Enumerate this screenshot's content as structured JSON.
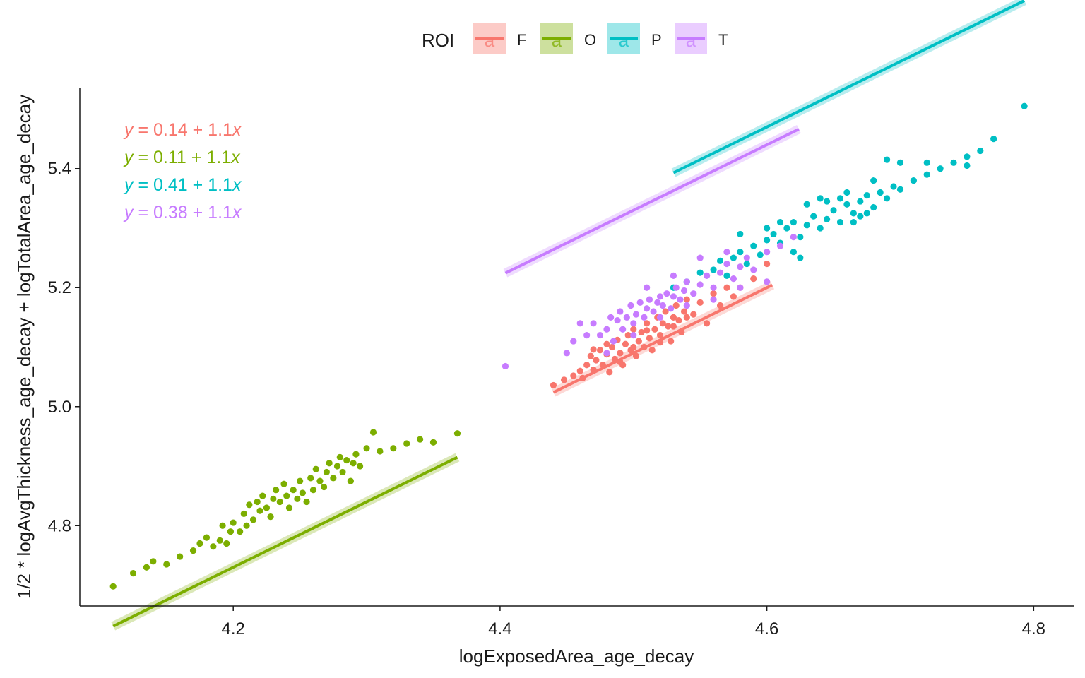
{
  "chart_data": {
    "type": "scatter",
    "xlabel": "logExposedArea_age_decay",
    "ylabel": "1/2 * logAvgThickness_age_decay + logTotalArea_age_decay",
    "xlim": [
      4.085,
      4.83
    ],
    "ylim": [
      4.665,
      5.535
    ],
    "xticks": [
      4.2,
      4.4,
      4.6,
      4.8
    ],
    "yticks": [
      4.8,
      5.0,
      5.2,
      5.4
    ],
    "x_tick_labels": [
      "4.2",
      "4.4",
      "4.6",
      "4.8"
    ],
    "y_tick_labels": [
      "4.8",
      "5.0",
      "5.2",
      "5.4"
    ],
    "grid": false,
    "legend": {
      "title": "ROI",
      "placement": "top",
      "glyph": "a"
    },
    "series": [
      {
        "name": "F",
        "color": "#F8766D",
        "equation": {
          "lhs": "y",
          "eq": " = ",
          "intercept": "0.14",
          "plus": " + ",
          "slope": "1.1",
          "var": "x"
        },
        "fit": {
          "intercept": 0.14,
          "slope": 1.1,
          "x_range": [
            4.44,
            4.604
          ]
        },
        "points": [
          [
            4.44,
            5.036
          ],
          [
            4.448,
            5.045
          ],
          [
            4.455,
            5.052
          ],
          [
            4.46,
            5.06
          ],
          [
            4.462,
            5.048
          ],
          [
            4.465,
            5.07
          ],
          [
            4.468,
            5.085
          ],
          [
            4.47,
            5.062
          ],
          [
            4.472,
            5.078
          ],
          [
            4.475,
            5.095
          ],
          [
            4.477,
            5.07
          ],
          [
            4.48,
            5.088
          ],
          [
            4.482,
            5.058
          ],
          [
            4.484,
            5.1
          ],
          [
            4.486,
            5.08
          ],
          [
            4.488,
            5.112
          ],
          [
            4.49,
            5.09
          ],
          [
            4.492,
            5.07
          ],
          [
            4.494,
            5.105
          ],
          [
            4.496,
            5.12
          ],
          [
            4.498,
            5.095
          ],
          [
            4.5,
            5.13
          ],
          [
            4.502,
            5.085
          ],
          [
            4.504,
            5.11
          ],
          [
            4.506,
            5.125
          ],
          [
            4.508,
            5.1
          ],
          [
            4.51,
            5.14
          ],
          [
            4.512,
            5.115
          ],
          [
            4.514,
            5.095
          ],
          [
            4.516,
            5.13
          ],
          [
            4.518,
            5.15
          ],
          [
            4.52,
            5.12
          ],
          [
            4.522,
            5.14
          ],
          [
            4.524,
            5.16
          ],
          [
            4.526,
            5.135
          ],
          [
            4.528,
            5.11
          ],
          [
            4.53,
            5.15
          ],
          [
            4.532,
            5.17
          ],
          [
            4.534,
            5.145
          ],
          [
            4.536,
            5.125
          ],
          [
            4.538,
            5.16
          ],
          [
            4.54,
            5.18
          ],
          [
            4.545,
            5.155
          ],
          [
            4.55,
            5.175
          ],
          [
            4.555,
            5.14
          ],
          [
            4.56,
            5.19
          ],
          [
            4.565,
            5.17
          ],
          [
            4.57,
            5.2
          ],
          [
            4.575,
            5.185
          ],
          [
            4.58,
            5.2
          ],
          [
            4.59,
            5.215
          ],
          [
            4.6,
            5.24
          ],
          [
            4.47,
            5.096
          ],
          [
            4.48,
            5.105
          ],
          [
            4.49,
            5.075
          ],
          [
            4.5,
            5.1
          ],
          [
            4.51,
            5.128
          ],
          [
            4.52,
            5.108
          ],
          [
            4.53,
            5.135
          ],
          [
            4.54,
            5.15
          ]
        ]
      },
      {
        "name": "O",
        "color": "#7CAE00",
        "equation": {
          "lhs": "y",
          "eq": " = ",
          "intercept": "0.11",
          "plus": " + ",
          "slope": "1.1",
          "var": "x"
        },
        "fit": {
          "intercept": 0.11,
          "slope": 1.1,
          "x_range": [
            4.11,
            4.368
          ]
        },
        "points": [
          [
            4.11,
            4.698
          ],
          [
            4.125,
            4.72
          ],
          [
            4.135,
            4.73
          ],
          [
            4.14,
            4.74
          ],
          [
            4.15,
            4.735
          ],
          [
            4.16,
            4.748
          ],
          [
            4.17,
            4.758
          ],
          [
            4.175,
            4.77
          ],
          [
            4.18,
            4.78
          ],
          [
            4.185,
            4.765
          ],
          [
            4.19,
            4.775
          ],
          [
            4.192,
            4.8
          ],
          [
            4.195,
            4.77
          ],
          [
            4.198,
            4.79
          ],
          [
            4.2,
            4.805
          ],
          [
            4.205,
            4.79
          ],
          [
            4.208,
            4.82
          ],
          [
            4.21,
            4.8
          ],
          [
            4.212,
            4.835
          ],
          [
            4.215,
            4.81
          ],
          [
            4.218,
            4.84
          ],
          [
            4.22,
            4.825
          ],
          [
            4.222,
            4.85
          ],
          [
            4.225,
            4.83
          ],
          [
            4.228,
            4.815
          ],
          [
            4.23,
            4.845
          ],
          [
            4.232,
            4.86
          ],
          [
            4.235,
            4.84
          ],
          [
            4.238,
            4.87
          ],
          [
            4.24,
            4.85
          ],
          [
            4.242,
            4.83
          ],
          [
            4.245,
            4.86
          ],
          [
            4.248,
            4.845
          ],
          [
            4.25,
            4.875
          ],
          [
            4.252,
            4.855
          ],
          [
            4.255,
            4.84
          ],
          [
            4.258,
            4.88
          ],
          [
            4.26,
            4.86
          ],
          [
            4.262,
            4.895
          ],
          [
            4.265,
            4.875
          ],
          [
            4.268,
            4.865
          ],
          [
            4.27,
            4.89
          ],
          [
            4.272,
            4.905
          ],
          [
            4.275,
            4.88
          ],
          [
            4.278,
            4.9
          ],
          [
            4.28,
            4.915
          ],
          [
            4.282,
            4.89
          ],
          [
            4.285,
            4.91
          ],
          [
            4.288,
            4.875
          ],
          [
            4.29,
            4.905
          ],
          [
            4.292,
            4.92
          ],
          [
            4.295,
            4.9
          ],
          [
            4.3,
            4.93
          ],
          [
            4.305,
            4.957
          ],
          [
            4.31,
            4.925
          ],
          [
            4.32,
            4.93
          ],
          [
            4.33,
            4.938
          ],
          [
            4.34,
            4.945
          ],
          [
            4.35,
            4.94
          ],
          [
            4.368,
            4.955
          ]
        ]
      },
      {
        "name": "P",
        "color": "#00BFC4",
        "equation": {
          "lhs": "y",
          "eq": " = ",
          "intercept": "0.41",
          "plus": " + ",
          "slope": "1.1",
          "var": "x"
        },
        "fit": {
          "intercept": 0.41,
          "slope": 1.1,
          "x_range": [
            4.53,
            4.793
          ]
        },
        "points": [
          [
            4.53,
            5.2
          ],
          [
            4.54,
            5.21
          ],
          [
            4.55,
            5.225
          ],
          [
            4.56,
            5.23
          ],
          [
            4.565,
            5.245
          ],
          [
            4.57,
            5.22
          ],
          [
            4.575,
            5.25
          ],
          [
            4.58,
            5.26
          ],
          [
            4.585,
            5.24
          ],
          [
            4.59,
            5.27
          ],
          [
            4.595,
            5.255
          ],
          [
            4.6,
            5.28
          ],
          [
            4.605,
            5.29
          ],
          [
            4.61,
            5.275
          ],
          [
            4.615,
            5.3
          ],
          [
            4.62,
            5.31
          ],
          [
            4.625,
            5.285
          ],
          [
            4.63,
            5.305
          ],
          [
            4.635,
            5.32
          ],
          [
            4.64,
            5.3
          ],
          [
            4.645,
            5.315
          ],
          [
            4.65,
            5.33
          ],
          [
            4.655,
            5.31
          ],
          [
            4.66,
            5.34
          ],
          [
            4.665,
            5.325
          ],
          [
            4.67,
            5.345
          ],
          [
            4.675,
            5.355
          ],
          [
            4.68,
            5.335
          ],
          [
            4.685,
            5.36
          ],
          [
            4.69,
            5.35
          ],
          [
            4.695,
            5.37
          ],
          [
            4.7,
            5.365
          ],
          [
            4.71,
            5.38
          ],
          [
            4.72,
            5.39
          ],
          [
            4.73,
            5.4
          ],
          [
            4.74,
            5.41
          ],
          [
            4.75,
            5.405
          ],
          [
            4.76,
            5.43
          ],
          [
            4.77,
            5.45
          ],
          [
            4.793,
            5.505
          ],
          [
            4.62,
            5.26
          ],
          [
            4.625,
            5.25
          ],
          [
            4.63,
            5.34
          ],
          [
            4.64,
            5.35
          ],
          [
            4.66,
            5.36
          ],
          [
            4.67,
            5.32
          ],
          [
            4.68,
            5.38
          ],
          [
            4.69,
            5.415
          ],
          [
            4.7,
            5.41
          ],
          [
            4.58,
            5.29
          ],
          [
            4.6,
            5.3
          ],
          [
            4.61,
            5.31
          ],
          [
            4.645,
            5.345
          ],
          [
            4.655,
            5.35
          ],
          [
            4.665,
            5.31
          ],
          [
            4.675,
            5.325
          ],
          [
            4.72,
            5.41
          ],
          [
            4.75,
            5.42
          ]
        ]
      },
      {
        "name": "T",
        "color": "#C77CFF",
        "equation": {
          "lhs": "y",
          "eq": " = ",
          "intercept": "0.38",
          "plus": " + ",
          "slope": "1.1",
          "var": "x"
        },
        "fit": {
          "intercept": 0.38,
          "slope": 1.1,
          "x_range": [
            4.404,
            4.624
          ]
        },
        "points": [
          [
            4.404,
            5.068
          ],
          [
            4.465,
            5.12
          ],
          [
            4.47,
            5.14
          ],
          [
            4.475,
            5.12
          ],
          [
            4.48,
            5.13
          ],
          [
            4.483,
            5.15
          ],
          [
            4.485,
            5.11
          ],
          [
            4.488,
            5.145
          ],
          [
            4.49,
            5.16
          ],
          [
            4.492,
            5.13
          ],
          [
            4.495,
            5.15
          ],
          [
            4.498,
            5.17
          ],
          [
            4.5,
            5.14
          ],
          [
            4.502,
            5.155
          ],
          [
            4.505,
            5.175
          ],
          [
            4.508,
            5.15
          ],
          [
            4.51,
            5.165
          ],
          [
            4.512,
            5.18
          ],
          [
            4.515,
            5.16
          ],
          [
            4.518,
            5.175
          ],
          [
            4.52,
            5.185
          ],
          [
            4.522,
            5.17
          ],
          [
            4.525,
            5.19
          ],
          [
            4.528,
            5.165
          ],
          [
            4.53,
            5.185
          ],
          [
            4.532,
            5.2
          ],
          [
            4.535,
            5.18
          ],
          [
            4.538,
            5.195
          ],
          [
            4.54,
            5.21
          ],
          [
            4.545,
            5.19
          ],
          [
            4.55,
            5.205
          ],
          [
            4.555,
            5.22
          ],
          [
            4.56,
            5.2
          ],
          [
            4.565,
            5.225
          ],
          [
            4.57,
            5.24
          ],
          [
            4.575,
            5.215
          ],
          [
            4.58,
            5.235
          ],
          [
            4.585,
            5.25
          ],
          [
            4.59,
            5.23
          ],
          [
            4.6,
            5.26
          ],
          [
            4.61,
            5.27
          ],
          [
            4.62,
            5.285
          ],
          [
            4.45,
            5.09
          ],
          [
            4.455,
            5.11
          ],
          [
            4.46,
            5.14
          ],
          [
            4.48,
            5.09
          ],
          [
            4.5,
            5.12
          ],
          [
            4.52,
            5.15
          ],
          [
            4.54,
            5.17
          ],
          [
            4.56,
            5.18
          ],
          [
            4.58,
            5.2
          ],
          [
            4.6,
            5.21
          ],
          [
            4.51,
            5.2
          ],
          [
            4.53,
            5.22
          ],
          [
            4.55,
            5.25
          ],
          [
            4.57,
            5.26
          ]
        ]
      }
    ]
  }
}
